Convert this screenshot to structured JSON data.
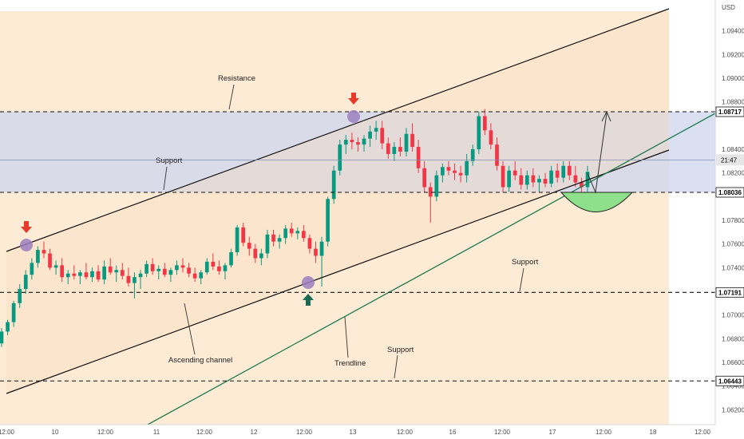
{
  "chart_data": {
    "type": "candlestick",
    "currency_label": "USD",
    "y_ticks": [
      "1.09400",
      "1.09200",
      "1.09000",
      "1.08800",
      "1.08400",
      "1.08200",
      "1.07800",
      "1.07600",
      "1.07400",
      "1.07000",
      "1.06800",
      "1.06600",
      "1.06400",
      "1.06200"
    ],
    "x_ticks": [
      "12:00",
      "10",
      "12:00",
      "11",
      "12:00",
      "12",
      "12:00",
      "13",
      "12:00",
      "16",
      "12:00",
      "17",
      "12:00",
      "18",
      "12:00"
    ],
    "ylim": [
      1.0612,
      1.0972
    ],
    "levels": [
      {
        "value": 1.08717,
        "label": "1.08717"
      },
      {
        "value": 1.08036,
        "label": "1.08036"
      },
      {
        "value": 1.07191,
        "label": "1.07191"
      },
      {
        "value": 1.06443,
        "label": "1.06443"
      }
    ],
    "current": {
      "value": 1.0831,
      "label": "21:47"
    },
    "annotations": [
      "Resistance",
      "Support",
      "Support",
      "Support",
      "Ascending channel",
      "Trendline"
    ],
    "colors": {
      "up": "#089981",
      "down": "#f23645",
      "trendline": "#1e7a4e",
      "zone": "#c8d2ee",
      "channel_fill": "#fde3c5",
      "bowl": "#8fe08a",
      "arrow_down": "#e8392b",
      "arrow_up": "#1a6b54",
      "marker": "#9b7fbe"
    },
    "candles": [
      [
        1.0676,
        1.0689,
        1.0673,
        1.0686
      ],
      [
        1.0686,
        1.0696,
        1.0683,
        1.0694
      ],
      [
        1.0694,
        1.0712,
        1.069,
        1.071
      ],
      [
        1.071,
        1.0726,
        1.0706,
        1.0722
      ],
      [
        1.0722,
        1.0738,
        1.0718,
        1.0734
      ],
      [
        1.0734,
        1.0748,
        1.073,
        1.0744
      ],
      [
        1.0744,
        1.0758,
        1.074,
        1.0755
      ],
      [
        1.0755,
        1.0762,
        1.0748,
        1.0752
      ],
      [
        1.0752,
        1.0756,
        1.0738,
        1.074
      ],
      [
        1.074,
        1.0746,
        1.0734,
        1.0742
      ],
      [
        1.0742,
        1.0748,
        1.0728,
        1.0732
      ],
      [
        1.0732,
        1.0738,
        1.0726,
        1.0735
      ],
      [
        1.0735,
        1.0742,
        1.073,
        1.0733
      ],
      [
        1.0733,
        1.0738,
        1.0726,
        1.0736
      ],
      [
        1.0736,
        1.0744,
        1.073,
        1.0732
      ],
      [
        1.0732,
        1.074,
        1.0728,
        1.0737
      ],
      [
        1.0737,
        1.0742,
        1.0728,
        1.073
      ],
      [
        1.073,
        1.0746,
        1.0726,
        1.0741
      ],
      [
        1.0741,
        1.0748,
        1.0734,
        1.0736
      ],
      [
        1.0736,
        1.0742,
        1.0728,
        1.0738
      ],
      [
        1.0738,
        1.0744,
        1.073,
        1.0733
      ],
      [
        1.0733,
        1.074,
        1.0724,
        1.0727
      ],
      [
        1.0727,
        1.0736,
        1.0714,
        1.0732
      ],
      [
        1.0732,
        1.0738,
        1.0722,
        1.0735
      ],
      [
        1.0735,
        1.0746,
        1.0732,
        1.0743
      ],
      [
        1.0743,
        1.0748,
        1.0734,
        1.0737
      ],
      [
        1.0737,
        1.0742,
        1.073,
        1.0739
      ],
      [
        1.0739,
        1.0744,
        1.0732,
        1.0734
      ],
      [
        1.0734,
        1.074,
        1.0728,
        1.0738
      ],
      [
        1.0738,
        1.0746,
        1.0734,
        1.0742
      ],
      [
        1.0742,
        1.0748,
        1.0736,
        1.074
      ],
      [
        1.074,
        1.0744,
        1.0732,
        1.0735
      ],
      [
        1.0735,
        1.074,
        1.0728,
        1.0731
      ],
      [
        1.0731,
        1.0738,
        1.0726,
        1.0736
      ],
      [
        1.0736,
        1.0748,
        1.0734,
        1.0745
      ],
      [
        1.0745,
        1.0752,
        1.0738,
        1.0741
      ],
      [
        1.0741,
        1.0746,
        1.0734,
        1.0737
      ],
      [
        1.0737,
        1.0744,
        1.073,
        1.0742
      ],
      [
        1.0742,
        1.0756,
        1.074,
        1.0753
      ],
      [
        1.0753,
        1.0776,
        1.075,
        1.0774
      ],
      [
        1.0774,
        1.0778,
        1.0758,
        1.0761
      ],
      [
        1.0761,
        1.0766,
        1.075,
        1.0756
      ],
      [
        1.0756,
        1.076,
        1.0744,
        1.0748
      ],
      [
        1.0748,
        1.0756,
        1.0742,
        1.0752
      ],
      [
        1.0752,
        1.0772,
        1.0748,
        1.0768
      ],
      [
        1.0768,
        1.0772,
        1.0758,
        1.0762
      ],
      [
        1.0762,
        1.0768,
        1.0756,
        1.0765
      ],
      [
        1.0765,
        1.0776,
        1.076,
        1.0773
      ],
      [
        1.0773,
        1.0778,
        1.0766,
        1.0769
      ],
      [
        1.0769,
        1.0774,
        1.0764,
        1.0771
      ],
      [
        1.0771,
        1.0776,
        1.0762,
        1.0765
      ],
      [
        1.0765,
        1.0768,
        1.0752,
        1.0756
      ],
      [
        1.0756,
        1.0762,
        1.0744,
        1.075
      ],
      [
        1.075,
        1.0766,
        1.0724,
        1.0762
      ],
      [
        1.0762,
        1.08,
        1.0758,
        1.0798
      ],
      [
        1.0798,
        1.0826,
        1.0794,
        1.0822
      ],
      [
        1.0822,
        1.0848,
        1.0818,
        1.0844
      ],
      [
        1.0844,
        1.0852,
        1.0836,
        1.0848
      ],
      [
        1.0848,
        1.0854,
        1.084,
        1.0846
      ],
      [
        1.0846,
        1.085,
        1.0838,
        1.0844
      ],
      [
        1.0844,
        1.0852,
        1.0838,
        1.0849
      ],
      [
        1.0849,
        1.086,
        1.0842,
        1.0855
      ],
      [
        1.0855,
        1.0864,
        1.0848,
        1.0858
      ],
      [
        1.0858,
        1.0864,
        1.084,
        1.0845
      ],
      [
        1.0845,
        1.085,
        1.0832,
        1.0836
      ],
      [
        1.0836,
        1.0846,
        1.083,
        1.0842
      ],
      [
        1.0842,
        1.085,
        1.0834,
        1.0838
      ],
      [
        1.0838,
        1.0858,
        1.0834,
        1.0853
      ],
      [
        1.0853,
        1.0862,
        1.0838,
        1.0842
      ],
      [
        1.0842,
        1.0848,
        1.082,
        1.0824
      ],
      [
        1.0824,
        1.083,
        1.0804,
        1.0808
      ],
      [
        1.0808,
        1.0812,
        1.0778,
        1.08
      ],
      [
        1.08,
        1.0822,
        1.0796,
        1.0818
      ],
      [
        1.0818,
        1.0828,
        1.0812,
        1.0825
      ],
      [
        1.0825,
        1.083,
        1.0818,
        1.0822
      ],
      [
        1.0822,
        1.0828,
        1.0814,
        1.082
      ],
      [
        1.082,
        1.0826,
        1.0812,
        1.0818
      ],
      [
        1.0818,
        1.0836,
        1.0812,
        1.083
      ],
      [
        1.083,
        1.0844,
        1.0826,
        1.084
      ],
      [
        1.084,
        1.0872,
        1.0836,
        1.0868
      ],
      [
        1.0868,
        1.0874,
        1.0852,
        1.0856
      ],
      [
        1.0856,
        1.0862,
        1.084,
        1.0844
      ],
      [
        1.0844,
        1.085,
        1.0822,
        1.0826
      ],
      [
        1.0826,
        1.083,
        1.0804,
        1.0808
      ],
      [
        1.0808,
        1.0826,
        1.0804,
        1.0822
      ],
      [
        1.0822,
        1.083,
        1.0814,
        1.0818
      ],
      [
        1.0818,
        1.0824,
        1.0806,
        1.081
      ],
      [
        1.081,
        1.0822,
        1.0806,
        1.0818
      ],
      [
        1.0818,
        1.0824,
        1.0808,
        1.0812
      ],
      [
        1.0812,
        1.0818,
        1.0804,
        1.0815
      ],
      [
        1.0815,
        1.082,
        1.0808,
        1.0811
      ],
      [
        1.0811,
        1.0826,
        1.0808,
        1.0822
      ],
      [
        1.0822,
        1.0828,
        1.0812,
        1.0816
      ],
      [
        1.0816,
        1.083,
        1.0812,
        1.0826
      ],
      [
        1.0826,
        1.083,
        1.0814,
        1.0818
      ],
      [
        1.0818,
        1.0826,
        1.0808,
        1.0812
      ],
      [
        1.0812,
        1.0816,
        1.0804,
        1.0808
      ],
      [
        1.0808,
        1.0826,
        1.0804,
        1.0821
      ]
    ]
  }
}
